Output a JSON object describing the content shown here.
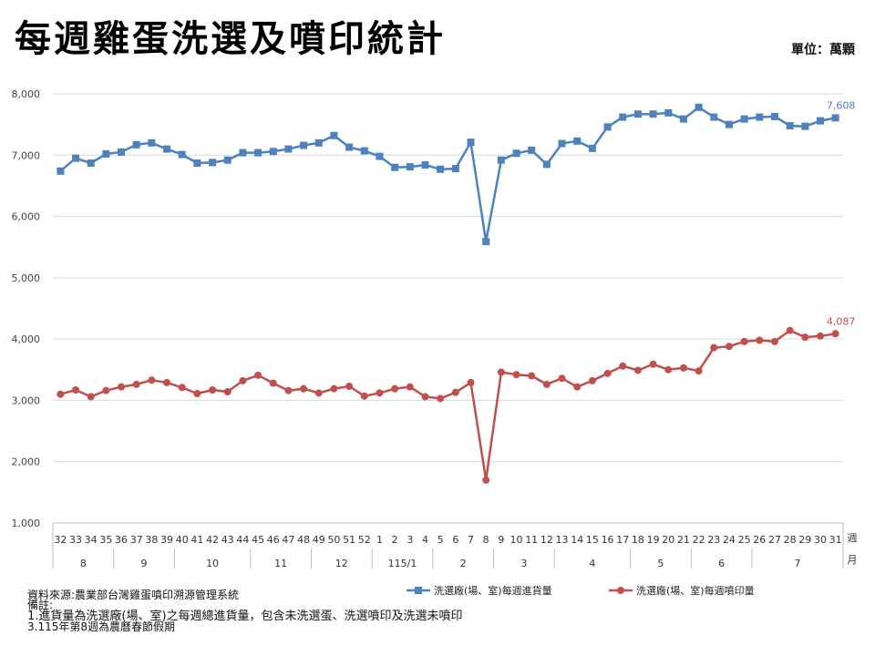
{
  "title": "每週雞蛋洗選及噴印統計",
  "unit": "單位：萬顆",
  "notes": {
    "source": "資料來源:農業部台灣雞蛋噴印溯源管理系統",
    "remark": "備註:",
    "note1": "1.進貨量為洗選廠(場、室)之每週總進貨量，包含未洗選蛋、洗選噴印及洗選未噴印",
    "note3": "3.115年第8週為農曆春節假期"
  },
  "chart_data": {
    "type": "line",
    "ylim": [
      1000,
      8000
    ],
    "yticks": [
      "1,000",
      "2,000",
      "3,000",
      "4,000",
      "5,000",
      "6,000",
      "7,000",
      "8,000"
    ],
    "grid": true,
    "legend_position": "bottom",
    "x_axis_label": "週 月",
    "weeks": [
      "32",
      "33",
      "34",
      "35",
      "36",
      "37",
      "38",
      "39",
      "40",
      "41",
      "42",
      "43",
      "44",
      "45",
      "46",
      "47",
      "48",
      "49",
      "50",
      "51",
      "52",
      "1",
      "2",
      "3",
      "4",
      "5",
      "6",
      "7",
      "8",
      "9",
      "10",
      "11",
      "12",
      "13",
      "14",
      "15",
      "16",
      "17",
      "18",
      "19",
      "20",
      "21",
      "22",
      "23",
      "24",
      "25",
      "26",
      "27",
      "28",
      "29",
      "30",
      "31"
    ],
    "months": [
      {
        "label": "8",
        "span": 4
      },
      {
        "label": "9",
        "span": 4
      },
      {
        "label": "10",
        "span": 5
      },
      {
        "label": "11",
        "span": 4
      },
      {
        "label": "12",
        "span": 4
      },
      {
        "label": "115/1",
        "span": 4
      },
      {
        "label": "2",
        "span": 4
      },
      {
        "label": "3",
        "span": 4
      },
      {
        "label": "4",
        "span": 5
      },
      {
        "label": "5",
        "span": 4
      },
      {
        "label": "6",
        "span": 4
      },
      {
        "label": "7",
        "span": 6
      }
    ],
    "series": [
      {
        "name": "洗選廠(場、室)每週進貨量",
        "color": "#4f81bd",
        "marker": "square",
        "end_label": "7,608",
        "values": [
          6740,
          6950,
          6870,
          7020,
          7050,
          7170,
          7200,
          7100,
          7010,
          6870,
          6880,
          6920,
          7040,
          7040,
          7060,
          7100,
          7160,
          7200,
          7320,
          7130,
          7070,
          6980,
          6800,
          6810,
          6840,
          6770,
          6780,
          7210,
          5590,
          6920,
          7030,
          7080,
          6850,
          7190,
          7230,
          7110,
          7460,
          7620,
          7670,
          7670,
          7690,
          7590,
          7780,
          7620,
          7500,
          7590,
          7620,
          7630,
          7480,
          7470,
          7560,
          7608
        ]
      },
      {
        "name": "洗選廠(場、室)每週噴印量",
        "color": "#c0504d",
        "marker": "circle",
        "end_label": "4,087",
        "values": [
          3100,
          3170,
          3060,
          3160,
          3220,
          3260,
          3330,
          3290,
          3210,
          3110,
          3170,
          3140,
          3320,
          3410,
          3280,
          3160,
          3190,
          3120,
          3190,
          3230,
          3070,
          3120,
          3190,
          3220,
          3060,
          3030,
          3130,
          3290,
          1700,
          3460,
          3420,
          3400,
          3260,
          3360,
          3220,
          3320,
          3440,
          3560,
          3490,
          3590,
          3500,
          3530,
          3480,
          3860,
          3880,
          3960,
          3980,
          3960,
          4140,
          4030,
          4050,
          4087
        ]
      }
    ]
  }
}
